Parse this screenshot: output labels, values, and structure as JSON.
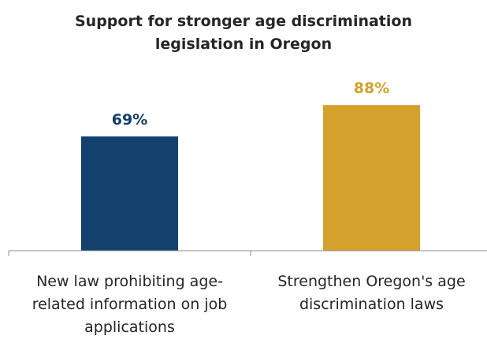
{
  "chart_data": {
    "type": "bar",
    "title_lines": [
      "Support for stronger age discrimination",
      "legislation in Oregon"
    ],
    "categories": [
      [
        "New law prohibiting age-",
        "related information on job",
        "applications"
      ],
      [
        "Strengthen Oregon's age",
        "discrimination laws"
      ]
    ],
    "values": [
      69,
      88
    ],
    "value_labels": [
      "69%",
      "88%"
    ],
    "colors": [
      "#13406d",
      "#d4a12b"
    ],
    "ylim": [
      0,
      100
    ],
    "grid": false,
    "legend": "none"
  }
}
